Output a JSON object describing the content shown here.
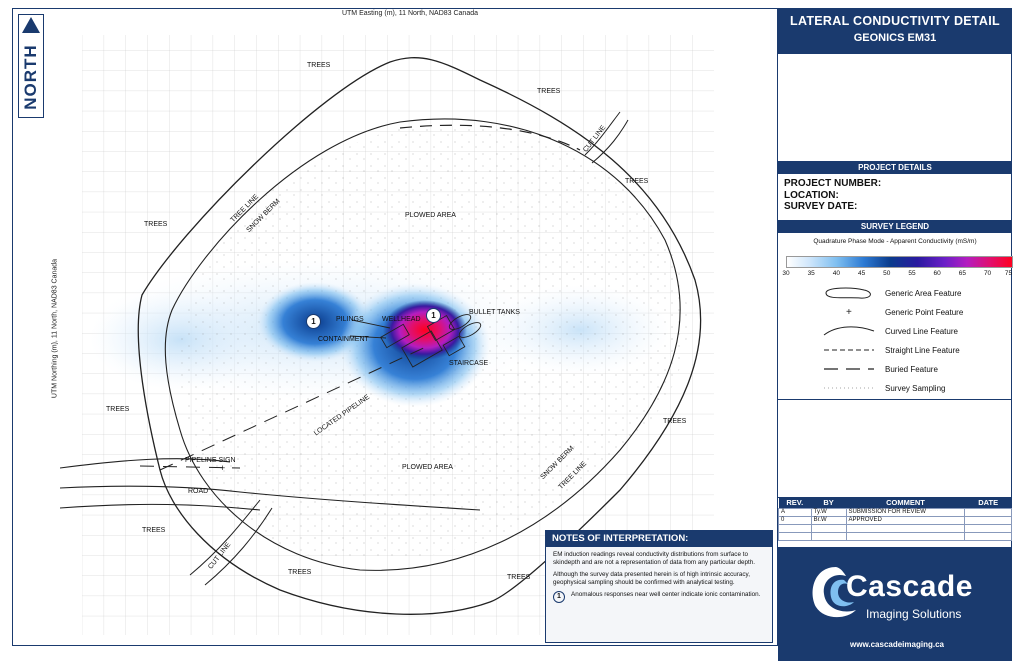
{
  "header": {
    "north_label": "NORTH",
    "axis_top": "UTM Easting (m), 11 North, NAD83 Canada",
    "axis_left": "UTM Northing (m), 11 North, NAD83 Canada"
  },
  "map_labels": {
    "trees": "TREES",
    "plowed_area": "PLOWED AREA",
    "tree_line": "TREE LINE",
    "snow_berm": "SNOW BERM",
    "cut_line": "CUT LINE",
    "pilings": "PILINGS",
    "containment": "CONTAINMENT",
    "wellhead": "WELLHEAD",
    "bullet_tanks": "BULLET TANKS",
    "staircase": "STAIRCASE",
    "located_pipeline": "LOCATED PIPELINE",
    "pipeline_sign": "PIPELINE SIGN",
    "road": "ROAD",
    "marker_number": "1"
  },
  "title": {
    "line1": "LATERAL CONDUCTIVITY DETAIL",
    "line2": "GEONICS EM31"
  },
  "project": {
    "header": "PROJECT DETAILS",
    "number_label": "PROJECT NUMBER:",
    "location_label": "LOCATION:",
    "date_label": "SURVEY DATE:"
  },
  "legend": {
    "header": "SURVEY LEGEND",
    "colorbar_title": "Quadrature Phase Mode - Apparent Conductivity (mS/m)",
    "ticks": [
      "30",
      "35",
      "40",
      "45",
      "50",
      "55",
      "60",
      "65",
      "70",
      "75"
    ],
    "items": [
      "Generic Area Feature",
      "Generic Point Feature",
      "Curved Line Feature",
      "Straight Line Feature",
      "Buried Feature",
      "Survey Sampling"
    ]
  },
  "revisions": {
    "headers": [
      "REV.",
      "BY",
      "COMMENT",
      "DATE"
    ],
    "rows": [
      [
        "A",
        "Ty.W",
        "SUBMISSION FOR REVIEW",
        ""
      ],
      [
        "0",
        "Br.W",
        "APPROVED",
        ""
      ]
    ]
  },
  "notes": {
    "header": "NOTES OF INTERPRETATION:",
    "p1": "EM induction readings reveal conductivity distributions from surface to skindepth and are not a representation of data from any particular depth.",
    "p2": "Although the survey data presented herein is of high intrinsic accuracy, geophysical sampling should be confirmed with analytical testing.",
    "note1_num": "1",
    "note1": "Anomalous responses near well center indicate ionic contamination."
  },
  "logo": {
    "name": "Cascade",
    "sub": "Imaging Solutions",
    "url": "www.cascadeimaging.ca"
  },
  "colors": {
    "brand_navy": "#1a3a6e",
    "anomaly_red": "#ff0020",
    "anomaly_blue": "#0a3b8c"
  }
}
